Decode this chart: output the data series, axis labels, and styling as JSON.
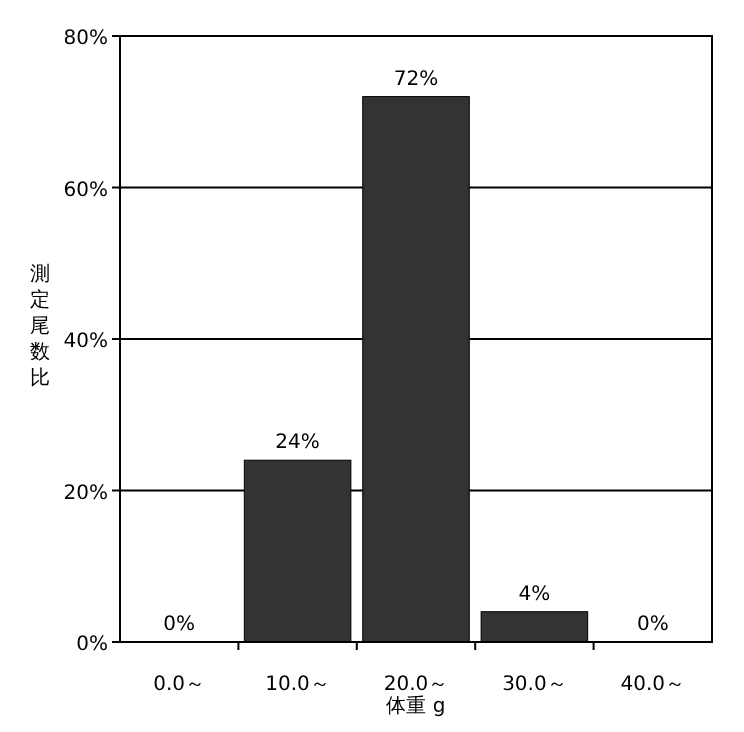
{
  "chart_data": {
    "type": "bar",
    "xlabel": "体重 g",
    "ylabel": "測定尾数比",
    "categories": [
      "0.0～",
      "10.0～",
      "20.0～",
      "30.0～",
      "40.0～"
    ],
    "values": [
      0,
      24,
      72,
      4,
      0
    ],
    "value_labels": [
      "0%",
      "24%",
      "72%",
      "4%",
      "0%"
    ],
    "color": "#333333",
    "ylim": [
      0,
      80
    ],
    "yticks": [
      {
        "value": 0,
        "label": "0%"
      },
      {
        "value": 20,
        "label": "20%"
      },
      {
        "value": 40,
        "label": "40%"
      },
      {
        "value": 60,
        "label": "60%"
      },
      {
        "value": 80,
        "label": "80%"
      }
    ],
    "grid": "y"
  }
}
